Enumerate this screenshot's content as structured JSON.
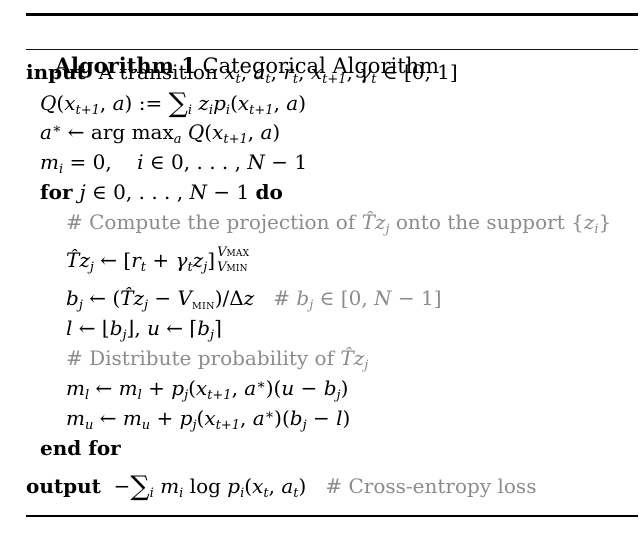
{
  "page": {
    "background": "#ffffff",
    "text_color": "#000000",
    "comment_color": "#8c8c8c",
    "rule_color": "#000000"
  },
  "header": {
    "label": "Algorithm 1",
    "title": " Categorical Algorithm"
  },
  "algorithm": {
    "lines": [
      {
        "name": "line-input",
        "indent": 0,
        "segments": [
          {
            "t": "input",
            "s": "b"
          },
          {
            "t": "  A transition ",
            "s": "rm"
          },
          {
            "t": "x",
            "s": "it"
          },
          {
            "t": "t",
            "s": "sub"
          },
          {
            "t": ", ",
            "s": "rm"
          },
          {
            "t": "a",
            "s": "it"
          },
          {
            "t": "t",
            "s": "sub"
          },
          {
            "t": ", ",
            "s": "rm"
          },
          {
            "t": "r",
            "s": "it"
          },
          {
            "t": "t",
            "s": "sub"
          },
          {
            "t": ", ",
            "s": "rm"
          },
          {
            "t": "x",
            "s": "it"
          },
          {
            "t": "t+1",
            "s": "sub"
          },
          {
            "t": ", ",
            "s": "rm"
          },
          {
            "t": "γ",
            "s": "it"
          },
          {
            "t": "t",
            "s": "sub"
          },
          {
            "t": " ∈ [0, 1]",
            "s": "rm"
          }
        ]
      },
      {
        "name": "line-q-definition",
        "indent": 1,
        "segments": [
          {
            "t": "Q",
            "s": "it"
          },
          {
            "t": "(",
            "s": "rm"
          },
          {
            "t": "x",
            "s": "it"
          },
          {
            "t": "t+1",
            "s": "sub"
          },
          {
            "t": ", ",
            "s": "rm"
          },
          {
            "t": "a",
            "s": "it"
          },
          {
            "t": ") := ",
            "s": "rm"
          },
          {
            "t": "∑",
            "s": "sum"
          },
          {
            "t": "i",
            "s": "sub"
          },
          {
            "t": " ",
            "s": "rm"
          },
          {
            "t": "z",
            "s": "it"
          },
          {
            "t": "i",
            "s": "sub"
          },
          {
            "t": "p",
            "s": "it"
          },
          {
            "t": "i",
            "s": "sub"
          },
          {
            "t": "(",
            "s": "rm"
          },
          {
            "t": "x",
            "s": "it"
          },
          {
            "t": "t+1",
            "s": "sub"
          },
          {
            "t": ", ",
            "s": "rm"
          },
          {
            "t": "a",
            "s": "it"
          },
          {
            "t": ")",
            "s": "rm"
          }
        ]
      },
      {
        "name": "line-argmax",
        "indent": 1,
        "segments": [
          {
            "t": "a",
            "s": "it"
          },
          {
            "t": "∗",
            "s": "sup"
          },
          {
            "t": " ← arg max",
            "s": "rm"
          },
          {
            "t": "a",
            "s": "sub"
          },
          {
            "t": " ",
            "s": "rm"
          },
          {
            "t": "Q",
            "s": "it"
          },
          {
            "t": "(",
            "s": "rm"
          },
          {
            "t": "x",
            "s": "it"
          },
          {
            "t": "t+1",
            "s": "sub"
          },
          {
            "t": ", ",
            "s": "rm"
          },
          {
            "t": "a",
            "s": "it"
          },
          {
            "t": ")",
            "s": "rm"
          }
        ]
      },
      {
        "name": "line-m-init",
        "indent": 1,
        "segments": [
          {
            "t": "m",
            "s": "it"
          },
          {
            "t": "i",
            "s": "sub"
          },
          {
            "t": " = 0,    ",
            "s": "rm"
          },
          {
            "t": "i",
            "s": "it"
          },
          {
            "t": " ∈ 0, . . . , ",
            "s": "rm"
          },
          {
            "t": "N",
            "s": "it"
          },
          {
            "t": " − 1",
            "s": "rm"
          }
        ]
      },
      {
        "name": "line-for",
        "indent": 1,
        "segments": [
          {
            "t": "for ",
            "s": "b"
          },
          {
            "t": "j",
            "s": "it"
          },
          {
            "t": " ∈ 0, . . . , ",
            "s": "rm"
          },
          {
            "t": "N",
            "s": "it"
          },
          {
            "t": " − 1 ",
            "s": "rm"
          },
          {
            "t": "do",
            "s": "b"
          }
        ]
      },
      {
        "name": "line-comment-projection",
        "indent": 2,
        "segments": [
          {
            "t": "# Compute the projection of ",
            "s": "cmt"
          },
          {
            "t": "T̂",
            "s": "ccal"
          },
          {
            "t": "z",
            "s": "cit"
          },
          {
            "t": "j",
            "s": "csub"
          },
          {
            "t": " onto the support {",
            "s": "cmt"
          },
          {
            "t": "z",
            "s": "cit"
          },
          {
            "t": "i",
            "s": "csub"
          },
          {
            "t": "}",
            "s": "cmt"
          }
        ]
      },
      {
        "name": "line-bellman-update",
        "indent": 2,
        "cls": "tall",
        "segments": [
          {
            "t": "T̂",
            "s": "cal"
          },
          {
            "t": "z",
            "s": "it"
          },
          {
            "t": "j",
            "s": "sub"
          },
          {
            "t": " ← [",
            "s": "rm"
          },
          {
            "t": "r",
            "s": "it"
          },
          {
            "t": "t",
            "s": "sub"
          },
          {
            "t": " + ",
            "s": "rm"
          },
          {
            "t": "γ",
            "s": "it"
          },
          {
            "t": "t",
            "s": "sub"
          },
          {
            "t": "z",
            "s": "it"
          },
          {
            "t": "j",
            "s": "sub"
          },
          {
            "t": "]",
            "s": "rm"
          },
          {
            "s": "stack",
            "top": {
              "v": "V",
              "sc": "MAX"
            },
            "bot": {
              "v": "V",
              "sc": "MIN"
            }
          }
        ]
      },
      {
        "name": "line-bj",
        "indent": 2,
        "segments": [
          {
            "t": "b",
            "s": "it"
          },
          {
            "t": "j",
            "s": "sub"
          },
          {
            "t": " ← (",
            "s": "rm"
          },
          {
            "t": "T̂",
            "s": "cal"
          },
          {
            "t": "z",
            "s": "it"
          },
          {
            "t": "j",
            "s": "sub"
          },
          {
            "t": " − ",
            "s": "rm"
          },
          {
            "t": "V",
            "s": "it"
          },
          {
            "t": "MIN",
            "s": "scsub"
          },
          {
            "t": ")/Δ",
            "s": "rm"
          },
          {
            "t": "z",
            "s": "it"
          },
          {
            "t": "   ",
            "s": "rm"
          },
          {
            "t": "# ",
            "s": "cmt"
          },
          {
            "t": "b",
            "s": "cit"
          },
          {
            "t": "j",
            "s": "csub"
          },
          {
            "t": " ∈ [0, ",
            "s": "cmt"
          },
          {
            "t": "N",
            "s": "cit"
          },
          {
            "t": " − 1]",
            "s": "cmt"
          }
        ]
      },
      {
        "name": "line-floor-ceil",
        "indent": 2,
        "segments": [
          {
            "t": "l",
            "s": "it"
          },
          {
            "t": " ← ⌊",
            "s": "rm"
          },
          {
            "t": "b",
            "s": "it"
          },
          {
            "t": "j",
            "s": "sub"
          },
          {
            "t": "⌋, ",
            "s": "rm"
          },
          {
            "t": "u",
            "s": "it"
          },
          {
            "t": " ← ⌈",
            "s": "rm"
          },
          {
            "t": "b",
            "s": "it"
          },
          {
            "t": "j",
            "s": "sub"
          },
          {
            "t": "⌉",
            "s": "rm"
          }
        ]
      },
      {
        "name": "line-comment-distribute",
        "indent": 2,
        "segments": [
          {
            "t": "# Distribute probability of ",
            "s": "cmt"
          },
          {
            "t": "T̂",
            "s": "ccal"
          },
          {
            "t": "z",
            "s": "cit"
          },
          {
            "t": "j",
            "s": "csub"
          }
        ]
      },
      {
        "name": "line-ml-update",
        "indent": 2,
        "segments": [
          {
            "t": "m",
            "s": "it"
          },
          {
            "t": "l",
            "s": "sub"
          },
          {
            "t": " ← ",
            "s": "rm"
          },
          {
            "t": "m",
            "s": "it"
          },
          {
            "t": "l",
            "s": "sub"
          },
          {
            "t": " + ",
            "s": "rm"
          },
          {
            "t": "p",
            "s": "it"
          },
          {
            "t": "j",
            "s": "sub"
          },
          {
            "t": "(",
            "s": "rm"
          },
          {
            "t": "x",
            "s": "it"
          },
          {
            "t": "t+1",
            "s": "sub"
          },
          {
            "t": ", ",
            "s": "rm"
          },
          {
            "t": "a",
            "s": "it"
          },
          {
            "t": "∗",
            "s": "sup"
          },
          {
            "t": ")(",
            "s": "rm"
          },
          {
            "t": "u",
            "s": "it"
          },
          {
            "t": " − ",
            "s": "rm"
          },
          {
            "t": "b",
            "s": "it"
          },
          {
            "t": "j",
            "s": "sub"
          },
          {
            "t": ")",
            "s": "rm"
          }
        ]
      },
      {
        "name": "line-mu-update",
        "indent": 2,
        "segments": [
          {
            "t": "m",
            "s": "it"
          },
          {
            "t": "u",
            "s": "sub"
          },
          {
            "t": " ← ",
            "s": "rm"
          },
          {
            "t": "m",
            "s": "it"
          },
          {
            "t": "u",
            "s": "sub"
          },
          {
            "t": " + ",
            "s": "rm"
          },
          {
            "t": "p",
            "s": "it"
          },
          {
            "t": "j",
            "s": "sub"
          },
          {
            "t": "(",
            "s": "rm"
          },
          {
            "t": "x",
            "s": "it"
          },
          {
            "t": "t+1",
            "s": "sub"
          },
          {
            "t": ", ",
            "s": "rm"
          },
          {
            "t": "a",
            "s": "it"
          },
          {
            "t": "∗",
            "s": "sup"
          },
          {
            "t": ")(",
            "s": "rm"
          },
          {
            "t": "b",
            "s": "it"
          },
          {
            "t": "j",
            "s": "sub"
          },
          {
            "t": " − ",
            "s": "rm"
          },
          {
            "t": "l",
            "s": "it"
          },
          {
            "t": ")",
            "s": "rm"
          }
        ]
      },
      {
        "name": "line-end-for",
        "indent": 1,
        "segments": [
          {
            "t": "end for",
            "s": "b"
          }
        ]
      },
      {
        "name": "line-output",
        "indent": 0,
        "cls": "outline",
        "segments": [
          {
            "t": "output",
            "s": "b"
          },
          {
            "t": "  −",
            "s": "rm"
          },
          {
            "t": "∑",
            "s": "sum"
          },
          {
            "t": "i",
            "s": "sub"
          },
          {
            "t": " ",
            "s": "rm"
          },
          {
            "t": "m",
            "s": "it"
          },
          {
            "t": "i",
            "s": "sub"
          },
          {
            "t": " log ",
            "s": "rm"
          },
          {
            "t": "p",
            "s": "it"
          },
          {
            "t": "i",
            "s": "sub"
          },
          {
            "t": "(",
            "s": "rm"
          },
          {
            "t": "x",
            "s": "it"
          },
          {
            "t": "t",
            "s": "sub"
          },
          {
            "t": ", ",
            "s": "rm"
          },
          {
            "t": "a",
            "s": "it"
          },
          {
            "t": "t",
            "s": "sub"
          },
          {
            "t": ")   ",
            "s": "rm"
          },
          {
            "t": "# Cross-entropy loss",
            "s": "cmt"
          }
        ]
      }
    ]
  }
}
